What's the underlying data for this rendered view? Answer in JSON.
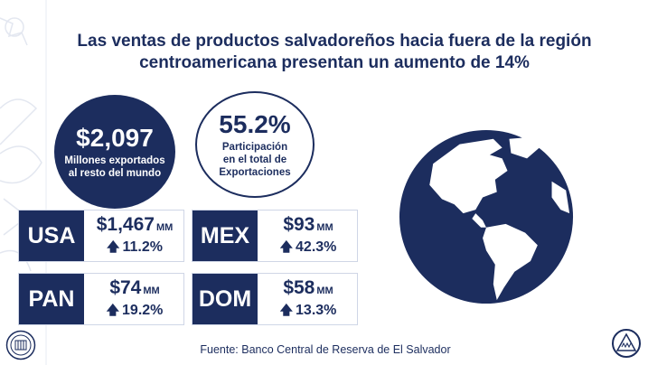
{
  "title": {
    "line1": "Las ventas de productos salvadoreños  hacia fuera de la región",
    "line2": "centroamericana presentan un aumento de 14%"
  },
  "stats": {
    "total": {
      "value": "$2,097",
      "label_line1": "Millones exportados",
      "label_line2": "al resto del mundo"
    },
    "share": {
      "value": "55.2%",
      "label_line1": "Participación",
      "label_line2": "en el total de",
      "label_line3": "Exportaciones"
    }
  },
  "countries": [
    {
      "code": "USA",
      "amount": "$1,467",
      "unit": "MM",
      "growth": "11.2%"
    },
    {
      "code": "MEX",
      "amount": "$93",
      "unit": "MM",
      "growth": "42.3%"
    },
    {
      "code": "PAN",
      "amount": "$74",
      "unit": "MM",
      "growth": "19.2%"
    },
    {
      "code": "DOM",
      "amount": "$58",
      "unit": "MM",
      "growth": "13.3%"
    }
  ],
  "growth_arrow": "🡅",
  "source": "Fuente: Banco Central de Reserva de El Salvador",
  "colors": {
    "navy": "#1c2d5e",
    "background": "#ffffff",
    "border": "#cfd6e6"
  },
  "icons": {
    "globe": "globe-icon",
    "arrow": "arrow-up-icon",
    "seal_left": "bcr-seal-icon",
    "seal_right": "el-salvador-coat-of-arms-icon"
  }
}
